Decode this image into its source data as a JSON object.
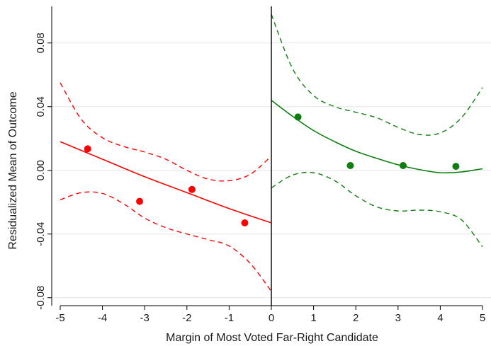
{
  "chart_data": {
    "type": "scatter",
    "title": "",
    "xlabel": "Margin of Most Voted Far-Right Candidate",
    "ylabel": "Residualized Mean of Outcome",
    "xlim": [
      -5,
      5
    ],
    "ylim": [
      -0.085,
      0.103
    ],
    "x_ticks": [
      -5,
      -4,
      -3,
      -2,
      -1,
      0,
      1,
      2,
      3,
      4,
      5
    ],
    "x_tick_labels": [
      "-5",
      "-4",
      "-3",
      "-2",
      "-1",
      "0",
      "1",
      "2",
      "3",
      "4",
      "5"
    ],
    "y_ticks": [
      -0.08,
      -0.04,
      0.0,
      0.04,
      0.08
    ],
    "y_tick_labels": [
      "-0.08",
      "-0.04",
      "0.00",
      "0.04",
      "0.08"
    ],
    "grid": true,
    "cutoff_x": 0,
    "series": [
      {
        "side": "left",
        "color": "#ff0000",
        "points": {
          "x": [
            -4.35,
            -3.12,
            -1.88,
            -0.63
          ],
          "y": [
            0.0135,
            -0.0195,
            -0.012,
            -0.033
          ]
        },
        "fit": {
          "x": [
            -5,
            -4,
            -3,
            -2,
            -1,
            0
          ],
          "y": [
            0.018,
            0.007,
            -0.004,
            -0.014,
            -0.024,
            -0.033
          ]
        },
        "ci_upper": {
          "x": [
            -5,
            -4.5,
            -4,
            -3.5,
            -3,
            -2.5,
            -2,
            -1.5,
            -1,
            -0.5,
            0
          ],
          "y": [
            0.055,
            0.032,
            0.0205,
            0.015,
            0.0115,
            0.007,
            0.0,
            -0.0055,
            -0.0065,
            -0.0025,
            0.009
          ]
        },
        "ci_lower": {
          "x": [
            -5,
            -4.5,
            -4,
            -3.5,
            -3,
            -2.5,
            -2,
            -1.5,
            -1,
            -0.5,
            0
          ],
          "y": [
            -0.0185,
            -0.014,
            -0.0145,
            -0.021,
            -0.03,
            -0.036,
            -0.04,
            -0.0435,
            -0.0475,
            -0.0585,
            -0.076
          ]
        }
      },
      {
        "side": "right",
        "color": "#0f7d0f",
        "points": {
          "x": [
            0.63,
            1.87,
            3.12,
            4.37
          ],
          "y": [
            0.0335,
            0.003,
            0.003,
            0.0025
          ]
        },
        "fit": {
          "x": [
            0,
            0.5,
            1,
            1.5,
            2,
            2.5,
            3,
            3.5,
            4,
            4.5,
            5
          ],
          "y": [
            0.044,
            0.034,
            0.025,
            0.018,
            0.012,
            0.0075,
            0.0035,
            0.0005,
            -0.0015,
            -0.001,
            0.001
          ]
        },
        "ci_upper": {
          "x": [
            0,
            0.5,
            1,
            1.5,
            2,
            2.5,
            3,
            3.5,
            4,
            4.5,
            5
          ],
          "y": [
            0.098,
            0.064,
            0.047,
            0.04,
            0.0365,
            0.033,
            0.027,
            0.0225,
            0.0235,
            0.033,
            0.052
          ]
        },
        "ci_lower": {
          "x": [
            0,
            0.5,
            1,
            1.5,
            2,
            2.5,
            3,
            3.5,
            4,
            4.5,
            5
          ],
          "y": [
            -0.011,
            -0.003,
            -0.0015,
            -0.0065,
            -0.016,
            -0.023,
            -0.0255,
            -0.025,
            -0.026,
            -0.031,
            -0.048
          ]
        }
      }
    ]
  }
}
